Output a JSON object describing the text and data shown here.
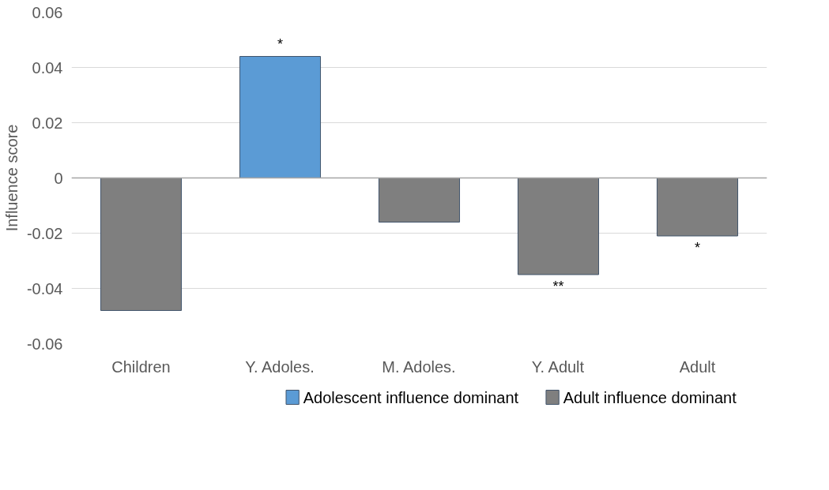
{
  "chart_data": {
    "type": "bar",
    "ylabel": "Influence score",
    "categories": [
      "Children",
      "Y. Adoles.",
      "M. Adoles.",
      "Y. Adult",
      "Adult"
    ],
    "series": [
      {
        "name": "Adolescent influence dominant",
        "color": "#5b9bd5",
        "values": [
          null,
          0.044,
          null,
          null,
          null
        ]
      },
      {
        "name": "Adult influence dominant",
        "color": "#7f7f7f",
        "values": [
          -0.048,
          null,
          -0.016,
          -0.035,
          -0.021
        ]
      }
    ],
    "ylim": [
      -0.06,
      0.06
    ],
    "yticks": [
      {
        "value": -0.06,
        "label": "-0.06"
      },
      {
        "value": -0.04,
        "label": "-0.04"
      },
      {
        "value": -0.02,
        "label": "-0.02"
      },
      0,
      {
        "value": 0.02,
        "label": "0.02"
      },
      {
        "value": 0.04,
        "label": "0.04"
      },
      {
        "value": 0.06,
        "label": "0.06"
      }
    ],
    "grid": "y",
    "legend": "bottom",
    "annotations": [
      {
        "text": "*",
        "x": "Y. Adoles.",
        "y": 0.044
      },
      {
        "text": "**",
        "x": "Y. Adult",
        "y": -0.035
      },
      {
        "text": "*",
        "x": "Adult",
        "y": -0.021
      }
    ]
  }
}
